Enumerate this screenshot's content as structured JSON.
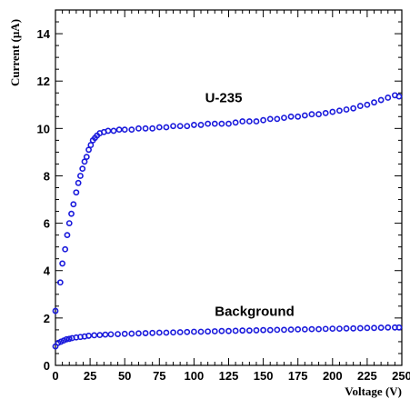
{
  "chart_data": {
    "type": "scatter",
    "title": "",
    "xlabel": "Voltage (V)",
    "ylabel": "Current (µA)",
    "xlim": [
      0,
      250
    ],
    "ylim": [
      0,
      15
    ],
    "x_ticks": [
      0,
      25,
      50,
      75,
      100,
      125,
      150,
      175,
      200,
      225,
      250
    ],
    "y_ticks": [
      0,
      2,
      4,
      6,
      8,
      10,
      12,
      14
    ],
    "grid": false,
    "marker_color": "#1a1adc",
    "annotations": [
      {
        "text": "U-235",
        "x": 108,
        "y": 11.1
      },
      {
        "text": "Background",
        "x": 115,
        "y": 2.1
      }
    ],
    "series": [
      {
        "label": "U-235",
        "points": [
          [
            0,
            2.3
          ],
          [
            3.5,
            3.5
          ],
          [
            5,
            4.3
          ],
          [
            7,
            4.9
          ],
          [
            8.5,
            5.5
          ],
          [
            10,
            6.0
          ],
          [
            11.5,
            6.4
          ],
          [
            13,
            6.8
          ],
          [
            15,
            7.3
          ],
          [
            16.5,
            7.7
          ],
          [
            18,
            8.0
          ],
          [
            19.5,
            8.3
          ],
          [
            21,
            8.6
          ],
          [
            22.5,
            8.8
          ],
          [
            24,
            9.1
          ],
          [
            25.5,
            9.3
          ],
          [
            27,
            9.5
          ],
          [
            28.5,
            9.6
          ],
          [
            30,
            9.7
          ],
          [
            32,
            9.8
          ],
          [
            35,
            9.85
          ],
          [
            38,
            9.9
          ],
          [
            42,
            9.9
          ],
          [
            46,
            9.95
          ],
          [
            50,
            9.95
          ],
          [
            55,
            9.95
          ],
          [
            60,
            10.0
          ],
          [
            65,
            10.0
          ],
          [
            70,
            10.0
          ],
          [
            75,
            10.05
          ],
          [
            80,
            10.05
          ],
          [
            85,
            10.1
          ],
          [
            90,
            10.1
          ],
          [
            95,
            10.1
          ],
          [
            100,
            10.15
          ],
          [
            105,
            10.15
          ],
          [
            110,
            10.2
          ],
          [
            115,
            10.2
          ],
          [
            120,
            10.2
          ],
          [
            125,
            10.2
          ],
          [
            130,
            10.25
          ],
          [
            135,
            10.3
          ],
          [
            140,
            10.3
          ],
          [
            145,
            10.3
          ],
          [
            150,
            10.35
          ],
          [
            155,
            10.4
          ],
          [
            160,
            10.4
          ],
          [
            165,
            10.45
          ],
          [
            170,
            10.5
          ],
          [
            175,
            10.5
          ],
          [
            180,
            10.55
          ],
          [
            185,
            10.6
          ],
          [
            190,
            10.6
          ],
          [
            195,
            10.65
          ],
          [
            200,
            10.7
          ],
          [
            205,
            10.75
          ],
          [
            210,
            10.8
          ],
          [
            215,
            10.85
          ],
          [
            220,
            10.95
          ],
          [
            225,
            11.0
          ],
          [
            230,
            11.1
          ],
          [
            235,
            11.2
          ],
          [
            240,
            11.3
          ],
          [
            245,
            11.4
          ],
          [
            248,
            11.35
          ]
        ]
      },
      {
        "label": "Background",
        "points": [
          [
            0,
            0.8
          ],
          [
            2,
            0.95
          ],
          [
            4,
            1.0
          ],
          [
            6,
            1.05
          ],
          [
            8,
            1.1
          ],
          [
            10,
            1.12
          ],
          [
            12,
            1.15
          ],
          [
            15,
            1.18
          ],
          [
            18,
            1.2
          ],
          [
            21,
            1.22
          ],
          [
            24,
            1.25
          ],
          [
            28,
            1.27
          ],
          [
            32,
            1.28
          ],
          [
            36,
            1.3
          ],
          [
            40,
            1.31
          ],
          [
            45,
            1.32
          ],
          [
            50,
            1.33
          ],
          [
            55,
            1.34
          ],
          [
            60,
            1.35
          ],
          [
            65,
            1.36
          ],
          [
            70,
            1.37
          ],
          [
            75,
            1.38
          ],
          [
            80,
            1.38
          ],
          [
            85,
            1.39
          ],
          [
            90,
            1.4
          ],
          [
            95,
            1.41
          ],
          [
            100,
            1.42
          ],
          [
            105,
            1.42
          ],
          [
            110,
            1.43
          ],
          [
            115,
            1.44
          ],
          [
            120,
            1.45
          ],
          [
            125,
            1.45
          ],
          [
            130,
            1.46
          ],
          [
            135,
            1.47
          ],
          [
            140,
            1.47
          ],
          [
            145,
            1.48
          ],
          [
            150,
            1.49
          ],
          [
            155,
            1.49
          ],
          [
            160,
            1.5
          ],
          [
            165,
            1.5
          ],
          [
            170,
            1.51
          ],
          [
            175,
            1.52
          ],
          [
            180,
            1.52
          ],
          [
            185,
            1.53
          ],
          [
            190,
            1.53
          ],
          [
            195,
            1.54
          ],
          [
            200,
            1.55
          ],
          [
            205,
            1.55
          ],
          [
            210,
            1.56
          ],
          [
            215,
            1.56
          ],
          [
            220,
            1.57
          ],
          [
            225,
            1.58
          ],
          [
            230,
            1.58
          ],
          [
            235,
            1.59
          ],
          [
            240,
            1.6
          ],
          [
            245,
            1.6
          ],
          [
            248,
            1.6
          ]
        ]
      }
    ]
  }
}
